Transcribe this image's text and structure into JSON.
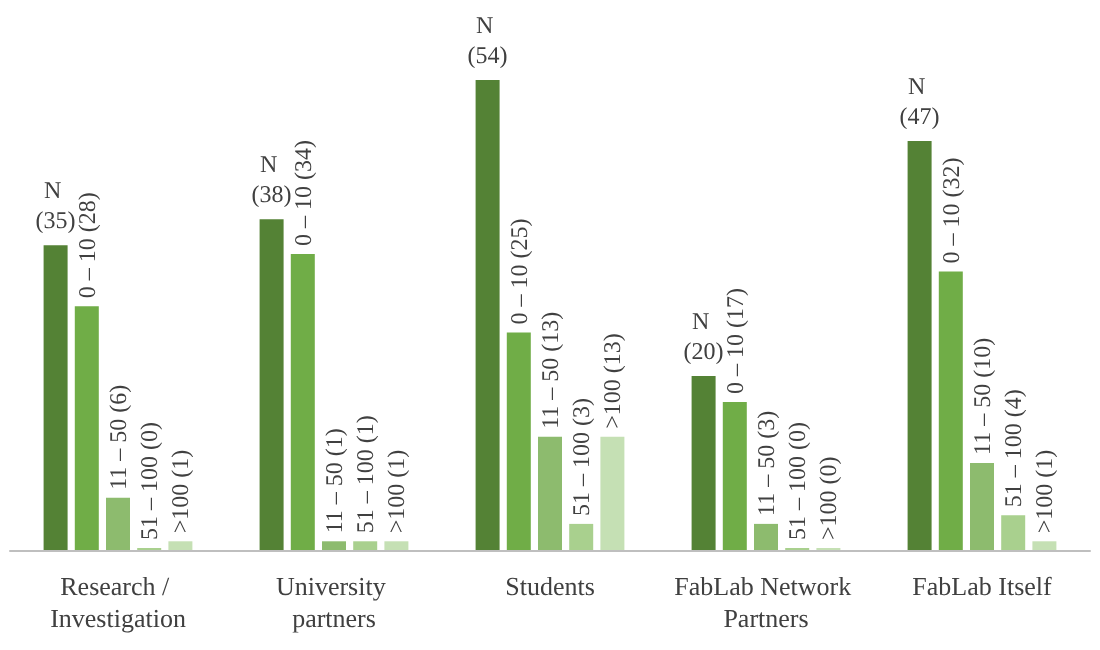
{
  "chart_data": {
    "type": "bar",
    "categories": [
      "Research / Investigation",
      "University partners",
      "Students",
      "FabLab Network Partners",
      "FabLab Itself"
    ],
    "series": [
      {
        "color": "#548235",
        "values": [
          35,
          38,
          54,
          20,
          47
        ],
        "value_labels": [
          "N (35)",
          "N (38)",
          "N (54)",
          "N (20)",
          "N (47)"
        ]
      },
      {
        "color": "#70ad47",
        "values": [
          28,
          34,
          25,
          17,
          32
        ],
        "value_labels": [
          "0 – 10 (28)",
          "0 – 10 (34)",
          "0 – 10 (25)",
          "0 – 10 (17)",
          "0 – 10 (32)"
        ]
      },
      {
        "color": "#8dbb6e",
        "values": [
          6,
          1,
          13,
          3,
          10
        ],
        "value_labels": [
          "11 – 50 (6)",
          "11 – 50 (1)",
          "11 – 50 (13)",
          "11 – 50 (3)",
          "11 – 50 (10)"
        ]
      },
      {
        "color": "#a9d08e",
        "values": [
          0,
          1,
          3,
          0,
          4
        ],
        "value_labels": [
          "51 – 100 (0)",
          "51 – 100 (1)",
          "51 – 100 (3)",
          "51 – 100 (0)",
          "51 – 100 (4)"
        ]
      },
      {
        "color": "#c5e0b4",
        "values": [
          1,
          1,
          13,
          0,
          1
        ],
        "value_labels": [
          ">100 (1)",
          ">100 (1)",
          ">100 (13)",
          ">100 (0)",
          ">100 (1)"
        ]
      }
    ]
  }
}
